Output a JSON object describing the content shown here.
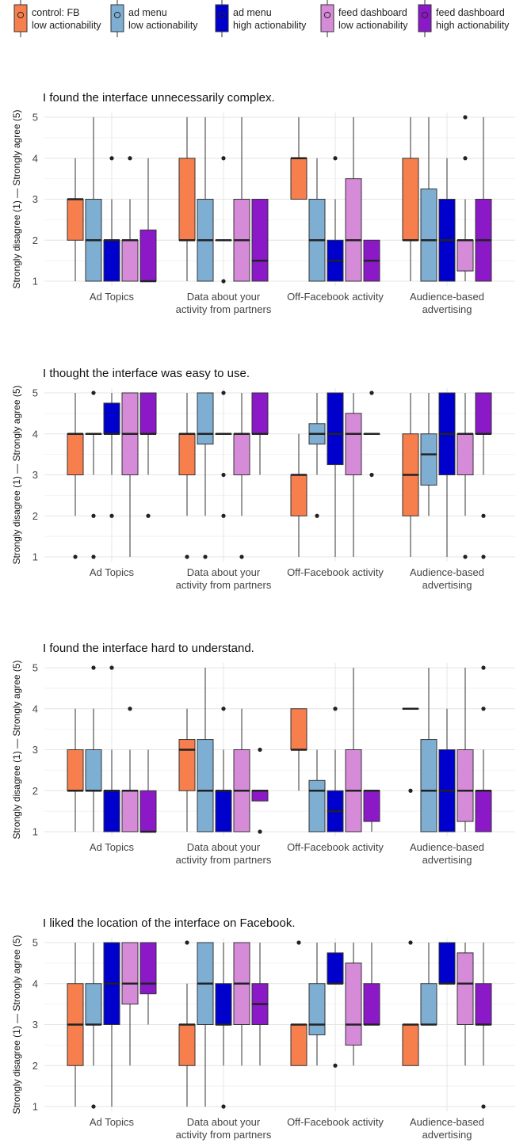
{
  "legend": [
    {
      "line1": "control: FB",
      "line2": "low actionability",
      "color": "#F77F4E"
    },
    {
      "line1": "ad menu",
      "line2": "low actionability",
      "color": "#7FAED3"
    },
    {
      "line1": "ad menu",
      "line2": "high actionability",
      "color": "#0000CC"
    },
    {
      "line1": "feed dashboard",
      "line2": "low actionability",
      "color": "#D68BD8"
    },
    {
      "line1": "feed dashboard",
      "line2": "high actionability",
      "color": "#8B19C8"
    }
  ],
  "chart_data": [
    {
      "type": "boxplot",
      "title": "I found the interface unnecessarily complex.",
      "ylabel": "Strongly disagree (1) — Strongly agree (5)",
      "ylim": [
        1,
        5
      ],
      "categories": [
        "Ad Topics",
        "Data about your activity from partners",
        "Off-Facebook activity",
        "Audience-based advertising"
      ],
      "category_labels": [
        [
          "Ad Topics"
        ],
        [
          "Data about your",
          "activity from partners"
        ],
        [
          "Off-Facebook activity"
        ],
        [
          "Audience-based",
          "advertising"
        ]
      ],
      "boxes": [
        [
          {
            "min": 1,
            "q1": 2,
            "median": 3,
            "q3": 3,
            "max": 4,
            "outliers": []
          },
          {
            "min": 1,
            "q1": 1,
            "median": 2,
            "q3": 3,
            "max": 5,
            "outliers": []
          },
          {
            "min": 1,
            "q1": 1,
            "median": 2,
            "q3": 2,
            "max": 3,
            "outliers": [
              4
            ]
          },
          {
            "min": 1,
            "q1": 1,
            "median": 2,
            "q3": 2,
            "max": 3,
            "outliers": [
              4
            ]
          },
          {
            "min": 1,
            "q1": 1,
            "median": 1,
            "q3": 2.25,
            "max": 4,
            "outliers": []
          }
        ],
        [
          {
            "min": 1,
            "q1": 2,
            "median": 2,
            "q3": 4,
            "max": 5,
            "outliers": []
          },
          {
            "min": 1,
            "q1": 1,
            "median": 2,
            "q3": 3,
            "max": 5,
            "outliers": []
          },
          {
            "min": 2,
            "q1": 2,
            "median": 2,
            "q3": 2,
            "max": 2,
            "outliers": [
              1,
              4
            ]
          },
          {
            "min": 1,
            "q1": 1,
            "median": 2,
            "q3": 3,
            "max": 5,
            "outliers": []
          },
          {
            "min": 1,
            "q1": 1,
            "median": 1.5,
            "q3": 3,
            "max": 3,
            "outliers": []
          }
        ],
        [
          {
            "min": 3,
            "q1": 3,
            "median": 4,
            "q3": 4,
            "max": 5,
            "outliers": []
          },
          {
            "min": 1,
            "q1": 1,
            "median": 2,
            "q3": 3,
            "max": 4,
            "outliers": []
          },
          {
            "min": 1,
            "q1": 1,
            "median": 1.5,
            "q3": 2,
            "max": 3,
            "outliers": [
              4
            ]
          },
          {
            "min": 1,
            "q1": 1,
            "median": 2,
            "q3": 3.5,
            "max": 5,
            "outliers": []
          },
          {
            "min": 1,
            "q1": 1,
            "median": 1.5,
            "q3": 2,
            "max": 2,
            "outliers": []
          }
        ],
        [
          {
            "min": 1,
            "q1": 2,
            "median": 2,
            "q3": 4,
            "max": 5,
            "outliers": []
          },
          {
            "min": 1,
            "q1": 1,
            "median": 2,
            "q3": 3.25,
            "max": 5,
            "outliers": []
          },
          {
            "min": 1,
            "q1": 1,
            "median": 2,
            "q3": 3,
            "max": 4,
            "outliers": []
          },
          {
            "min": 1,
            "q1": 1.25,
            "median": 2,
            "q3": 2,
            "max": 3,
            "outliers": [
              4,
              5
            ]
          },
          {
            "min": 1,
            "q1": 1,
            "median": 2,
            "q3": 3,
            "max": 5,
            "outliers": []
          }
        ]
      ]
    },
    {
      "type": "boxplot",
      "title": "I thought the interface was easy to use.",
      "ylabel": "Strongly disagree (1) — Strongly agree (5)",
      "ylim": [
        1,
        5
      ],
      "categories": [
        "Ad Topics",
        "Data about your activity from partners",
        "Off-Facebook activity",
        "Audience-based advertising"
      ],
      "category_labels": [
        [
          "Ad Topics"
        ],
        [
          "Data about your",
          "activity from partners"
        ],
        [
          "Off-Facebook activity"
        ],
        [
          "Audience-based",
          "advertising"
        ]
      ],
      "boxes": [
        [
          {
            "min": 2,
            "q1": 3,
            "median": 4,
            "q3": 4,
            "max": 5,
            "outliers": [
              1
            ]
          },
          {
            "min": 3,
            "q1": 4,
            "median": 4,
            "q3": 4,
            "max": 4,
            "outliers": [
              1,
              2,
              5
            ]
          },
          {
            "min": 3,
            "q1": 4,
            "median": 4,
            "q3": 4.75,
            "max": 5,
            "outliers": [
              2
            ]
          },
          {
            "min": 1,
            "q1": 3,
            "median": 4,
            "q3": 5,
            "max": 5,
            "outliers": []
          },
          {
            "min": 3,
            "q1": 4,
            "median": 4,
            "q3": 5,
            "max": 5,
            "outliers": [
              2
            ]
          }
        ],
        [
          {
            "min": 2,
            "q1": 3,
            "median": 4,
            "q3": 4,
            "max": 5,
            "outliers": [
              1
            ]
          },
          {
            "min": 2,
            "q1": 3.75,
            "median": 4,
            "q3": 5,
            "max": 5,
            "outliers": [
              1
            ]
          },
          {
            "min": 4,
            "q1": 4,
            "median": 4,
            "q3": 4,
            "max": 4,
            "outliers": [
              2,
              3,
              5
            ]
          },
          {
            "min": 2,
            "q1": 3,
            "median": 4,
            "q3": 4,
            "max": 5,
            "outliers": [
              1
            ]
          },
          {
            "min": 3,
            "q1": 4,
            "median": 4,
            "q3": 5,
            "max": 5,
            "outliers": []
          }
        ],
        [
          {
            "min": 1,
            "q1": 2,
            "median": 3,
            "q3": 3,
            "max": 4,
            "outliers": []
          },
          {
            "min": 3,
            "q1": 3.75,
            "median": 4,
            "q3": 4.25,
            "max": 5,
            "outliers": [
              2
            ]
          },
          {
            "min": 1,
            "q1": 3.25,
            "median": 4,
            "q3": 5,
            "max": 5,
            "outliers": []
          },
          {
            "min": 1,
            "q1": 3,
            "median": 4,
            "q3": 4.5,
            "max": 5,
            "outliers": []
          },
          {
            "min": 4,
            "q1": 4,
            "median": 4,
            "q3": 4,
            "max": 4,
            "outliers": [
              3,
              5
            ]
          }
        ],
        [
          {
            "min": 1,
            "q1": 2,
            "median": 3,
            "q3": 4,
            "max": 5,
            "outliers": []
          },
          {
            "min": 2,
            "q1": 2.75,
            "median": 3.5,
            "q3": 4,
            "max": 5,
            "outliers": []
          },
          {
            "min": 1,
            "q1": 3,
            "median": 4,
            "q3": 5,
            "max": 5,
            "outliers": []
          },
          {
            "min": 2,
            "q1": 3,
            "median": 4,
            "q3": 4,
            "max": 5,
            "outliers": [
              1
            ]
          },
          {
            "min": 3,
            "q1": 4,
            "median": 4,
            "q3": 5,
            "max": 5,
            "outliers": [
              1,
              2
            ]
          }
        ]
      ]
    },
    {
      "type": "boxplot",
      "title": "I found the interface hard to understand.",
      "ylabel": "Strongly disagree (1) — Strongly agree (5)",
      "ylim": [
        1,
        5
      ],
      "categories": [
        "Ad Topics",
        "Data about your activity from partners",
        "Off-Facebook activity",
        "Audience-based advertising"
      ],
      "category_labels": [
        [
          "Ad Topics"
        ],
        [
          "Data about your",
          "activity from partners"
        ],
        [
          "Off-Facebook activity"
        ],
        [
          "Audience-based",
          "advertising"
        ]
      ],
      "boxes": [
        [
          {
            "min": 1,
            "q1": 2,
            "median": 2,
            "q3": 3,
            "max": 4,
            "outliers": []
          },
          {
            "min": 1,
            "q1": 2,
            "median": 2,
            "q3": 3,
            "max": 4,
            "outliers": [
              5
            ]
          },
          {
            "min": 1,
            "q1": 1,
            "median": 2,
            "q3": 2,
            "max": 3,
            "outliers": [
              5
            ]
          },
          {
            "min": 1,
            "q1": 1,
            "median": 2,
            "q3": 2,
            "max": 3,
            "outliers": [
              4
            ]
          },
          {
            "min": 1,
            "q1": 1,
            "median": 1,
            "q3": 2,
            "max": 3,
            "outliers": []
          }
        ],
        [
          {
            "min": 1,
            "q1": 2,
            "median": 3,
            "q3": 3.25,
            "max": 4,
            "outliers": []
          },
          {
            "min": 1,
            "q1": 1,
            "median": 2,
            "q3": 3.25,
            "max": 5,
            "outliers": []
          },
          {
            "min": 1,
            "q1": 1,
            "median": 2,
            "q3": 2,
            "max": 3,
            "outliers": [
              4
            ]
          },
          {
            "min": 1,
            "q1": 1,
            "median": 2,
            "q3": 3,
            "max": 4,
            "outliers": []
          },
          {
            "min": 1.75,
            "q1": 1.75,
            "median": 2,
            "q3": 2,
            "max": 2,
            "outliers": [
              1,
              3
            ]
          }
        ],
        [
          {
            "min": 2,
            "q1": 3,
            "median": 3,
            "q3": 4,
            "max": 4,
            "outliers": []
          },
          {
            "min": 1,
            "q1": 1,
            "median": 2,
            "q3": 2.25,
            "max": 3,
            "outliers": []
          },
          {
            "min": 1,
            "q1": 1,
            "median": 1.5,
            "q3": 2,
            "max": 3,
            "outliers": [
              4
            ]
          },
          {
            "min": 1,
            "q1": 1,
            "median": 2,
            "q3": 3,
            "max": 5,
            "outliers": []
          },
          {
            "min": 1,
            "q1": 1.25,
            "median": 2,
            "q3": 2,
            "max": 2,
            "outliers": []
          }
        ],
        [
          {
            "min": 4,
            "q1": 4,
            "median": 4,
            "q3": 4,
            "max": 4,
            "outliers": [
              2
            ]
          },
          {
            "min": 1,
            "q1": 1,
            "median": 2,
            "q3": 3.25,
            "max": 5,
            "outliers": []
          },
          {
            "min": 1,
            "q1": 1,
            "median": 2,
            "q3": 3,
            "max": 4,
            "outliers": []
          },
          {
            "min": 1,
            "q1": 1.25,
            "median": 2,
            "q3": 3,
            "max": 5,
            "outliers": []
          },
          {
            "min": 1,
            "q1": 1,
            "median": 2,
            "q3": 2,
            "max": 3,
            "outliers": [
              4,
              5
            ]
          }
        ]
      ]
    },
    {
      "type": "boxplot",
      "title": "I liked the location of the interface on Facebook.",
      "ylabel": "Strongly disagree (1) — Strongly agree (5)",
      "ylim": [
        1,
        5
      ],
      "categories": [
        "Ad Topics",
        "Data about your activity from partners",
        "Off-Facebook activity",
        "Audience-based advertising"
      ],
      "category_labels": [
        [
          "Ad Topics"
        ],
        [
          "Data about your",
          "activity from partners"
        ],
        [
          "Off-Facebook activity"
        ],
        [
          "Audience-based",
          "advertising"
        ]
      ],
      "boxes": [
        [
          {
            "min": 1,
            "q1": 2,
            "median": 3,
            "q3": 4,
            "max": 5,
            "outliers": []
          },
          {
            "min": 2,
            "q1": 3,
            "median": 3,
            "q3": 4,
            "max": 5,
            "outliers": [
              1
            ]
          },
          {
            "min": 1,
            "q1": 3,
            "median": 4,
            "q3": 5,
            "max": 5,
            "outliers": []
          },
          {
            "min": 2,
            "q1": 3.5,
            "median": 4,
            "q3": 5,
            "max": 5,
            "outliers": []
          },
          {
            "min": 3,
            "q1": 3.75,
            "median": 4,
            "q3": 5,
            "max": 5,
            "outliers": []
          }
        ],
        [
          {
            "min": 1,
            "q1": 2,
            "median": 3,
            "q3": 3,
            "max": 4,
            "outliers": [
              5
            ]
          },
          {
            "min": 1,
            "q1": 3,
            "median": 4,
            "q3": 5,
            "max": 5,
            "outliers": []
          },
          {
            "min": 2,
            "q1": 3,
            "median": 3,
            "q3": 4,
            "max": 5,
            "outliers": [
              1
            ]
          },
          {
            "min": 2,
            "q1": 3,
            "median": 4,
            "q3": 5,
            "max": 5,
            "outliers": []
          },
          {
            "min": 2,
            "q1": 3,
            "median": 3.5,
            "q3": 4,
            "max": 5,
            "outliers": []
          }
        ],
        [
          {
            "min": 2,
            "q1": 2,
            "median": 3,
            "q3": 3,
            "max": 3,
            "outliers": [
              5
            ]
          },
          {
            "min": 2,
            "q1": 2.75,
            "median": 3,
            "q3": 4,
            "max": 5,
            "outliers": []
          },
          {
            "min": 4,
            "q1": 4,
            "median": 4,
            "q3": 4.75,
            "max": 5,
            "outliers": [
              2
            ]
          },
          {
            "min": 2,
            "q1": 2.5,
            "median": 3,
            "q3": 4.5,
            "max": 5,
            "outliers": []
          },
          {
            "min": 3,
            "q1": 3,
            "median": 3,
            "q3": 4,
            "max": 5,
            "outliers": []
          }
        ],
        [
          {
            "min": 2,
            "q1": 2,
            "median": 3,
            "q3": 3,
            "max": 3,
            "outliers": [
              5
            ]
          },
          {
            "min": 3,
            "q1": 3,
            "median": 3,
            "q3": 4,
            "max": 5,
            "outliers": []
          },
          {
            "min": 4,
            "q1": 4,
            "median": 4,
            "q3": 5,
            "max": 5,
            "outliers": []
          },
          {
            "min": 2,
            "q1": 3,
            "median": 4,
            "q3": 4.75,
            "max": 5,
            "outliers": []
          },
          {
            "min": 2,
            "q1": 3,
            "median": 3,
            "q3": 4,
            "max": 5,
            "outliers": [
              1
            ]
          }
        ]
      ]
    }
  ]
}
